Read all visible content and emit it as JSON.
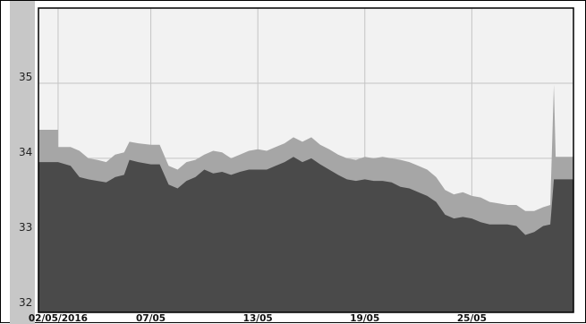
{
  "chart_data": {
    "type": "area",
    "title": "",
    "xlabel": "",
    "ylabel": "",
    "ylim": [
      31.95,
      36.0
    ],
    "grid": true,
    "legend": "none",
    "yticks": [
      "32",
      "33",
      "34",
      "35"
    ],
    "xticks": [
      {
        "label": "02/05/2016",
        "x": 0.8
      },
      {
        "label": "07/05",
        "x": 6
      },
      {
        "label": "13/05",
        "x": 12
      },
      {
        "label": "19/05",
        "x": 18
      },
      {
        "label": "25/05",
        "x": 24
      }
    ],
    "xlim": [
      -0.3,
      29.7
    ],
    "colors": {
      "upper_area": "#a6a6a6",
      "lower_area": "#4a4a4a",
      "plot_background": "#f2f2f2",
      "left_strip": "#c7c7c7",
      "grid": "#c4c4c4"
    },
    "series": [
      {
        "values": [
          [
            -0.3,
            34.38
          ],
          [
            0.8,
            34.38
          ],
          [
            0.8,
            34.15
          ],
          [
            1.5,
            34.15
          ],
          [
            2.0,
            34.1
          ],
          [
            2.5,
            34.0
          ],
          [
            3.0,
            33.98
          ],
          [
            3.5,
            33.95
          ],
          [
            4.0,
            34.05
          ],
          [
            4.5,
            34.08
          ],
          [
            4.8,
            34.22
          ],
          [
            5.3,
            34.2
          ],
          [
            6.0,
            34.18
          ],
          [
            6.5,
            34.18
          ],
          [
            7.0,
            33.9
          ],
          [
            7.5,
            33.85
          ],
          [
            8.0,
            33.95
          ],
          [
            8.5,
            33.98
          ],
          [
            9.0,
            34.05
          ],
          [
            9.5,
            34.1
          ],
          [
            10.0,
            34.08
          ],
          [
            10.5,
            34.0
          ],
          [
            11.0,
            34.05
          ],
          [
            11.5,
            34.1
          ],
          [
            12.0,
            34.12
          ],
          [
            12.5,
            34.1
          ],
          [
            13.0,
            34.15
          ],
          [
            13.5,
            34.2
          ],
          [
            14.0,
            34.28
          ],
          [
            14.5,
            34.22
          ],
          [
            15.0,
            34.28
          ],
          [
            15.5,
            34.18
          ],
          [
            16.0,
            34.12
          ],
          [
            16.5,
            34.05
          ],
          [
            17.0,
            34.0
          ],
          [
            17.5,
            33.98
          ],
          [
            18.0,
            34.02
          ],
          [
            18.5,
            34.0
          ],
          [
            19.0,
            34.02
          ],
          [
            19.5,
            34.0
          ],
          [
            20.0,
            33.98
          ],
          [
            20.5,
            33.95
          ],
          [
            21.0,
            33.9
          ],
          [
            21.5,
            33.85
          ],
          [
            22.0,
            33.75
          ],
          [
            22.5,
            33.58
          ],
          [
            23.0,
            33.52
          ],
          [
            23.5,
            33.55
          ],
          [
            24.0,
            33.5
          ],
          [
            24.5,
            33.48
          ],
          [
            25.0,
            33.42
          ],
          [
            25.5,
            33.4
          ],
          [
            26.0,
            33.38
          ],
          [
            26.5,
            33.38
          ],
          [
            27.0,
            33.3
          ],
          [
            27.5,
            33.3
          ],
          [
            28.0,
            33.35
          ],
          [
            28.4,
            33.38
          ],
          [
            28.6,
            34.98
          ],
          [
            28.7,
            34.02
          ],
          [
            29.7,
            34.02
          ]
        ]
      },
      {
        "values": [
          [
            -0.3,
            33.95
          ],
          [
            0.8,
            33.95
          ],
          [
            1.5,
            33.9
          ],
          [
            2.0,
            33.75
          ],
          [
            2.5,
            33.72
          ],
          [
            3.0,
            33.7
          ],
          [
            3.5,
            33.68
          ],
          [
            4.0,
            33.75
          ],
          [
            4.5,
            33.78
          ],
          [
            4.8,
            33.98
          ],
          [
            5.3,
            33.95
          ],
          [
            6.0,
            33.92
          ],
          [
            6.5,
            33.92
          ],
          [
            7.0,
            33.65
          ],
          [
            7.5,
            33.6
          ],
          [
            8.0,
            33.7
          ],
          [
            8.5,
            33.75
          ],
          [
            9.0,
            33.85
          ],
          [
            9.5,
            33.8
          ],
          [
            10.0,
            33.82
          ],
          [
            10.5,
            33.78
          ],
          [
            11.0,
            33.82
          ],
          [
            11.5,
            33.85
          ],
          [
            12.0,
            33.85
          ],
          [
            12.5,
            33.85
          ],
          [
            13.0,
            33.9
          ],
          [
            13.5,
            33.95
          ],
          [
            14.0,
            34.02
          ],
          [
            14.5,
            33.95
          ],
          [
            15.0,
            34.0
          ],
          [
            15.5,
            33.92
          ],
          [
            16.0,
            33.85
          ],
          [
            16.5,
            33.78
          ],
          [
            17.0,
            33.72
          ],
          [
            17.5,
            33.7
          ],
          [
            18.0,
            33.72
          ],
          [
            18.5,
            33.7
          ],
          [
            19.0,
            33.7
          ],
          [
            19.5,
            33.68
          ],
          [
            20.0,
            33.62
          ],
          [
            20.5,
            33.6
          ],
          [
            21.0,
            33.55
          ],
          [
            21.5,
            33.5
          ],
          [
            22.0,
            33.42
          ],
          [
            22.5,
            33.25
          ],
          [
            23.0,
            33.2
          ],
          [
            23.5,
            33.22
          ],
          [
            24.0,
            33.2
          ],
          [
            24.5,
            33.15
          ],
          [
            25.0,
            33.12
          ],
          [
            25.5,
            33.12
          ],
          [
            26.0,
            33.12
          ],
          [
            26.5,
            33.1
          ],
          [
            27.0,
            32.98
          ],
          [
            27.5,
            33.02
          ],
          [
            28.0,
            33.1
          ],
          [
            28.4,
            33.12
          ],
          [
            28.6,
            33.72
          ],
          [
            29.7,
            33.72
          ]
        ]
      }
    ]
  }
}
